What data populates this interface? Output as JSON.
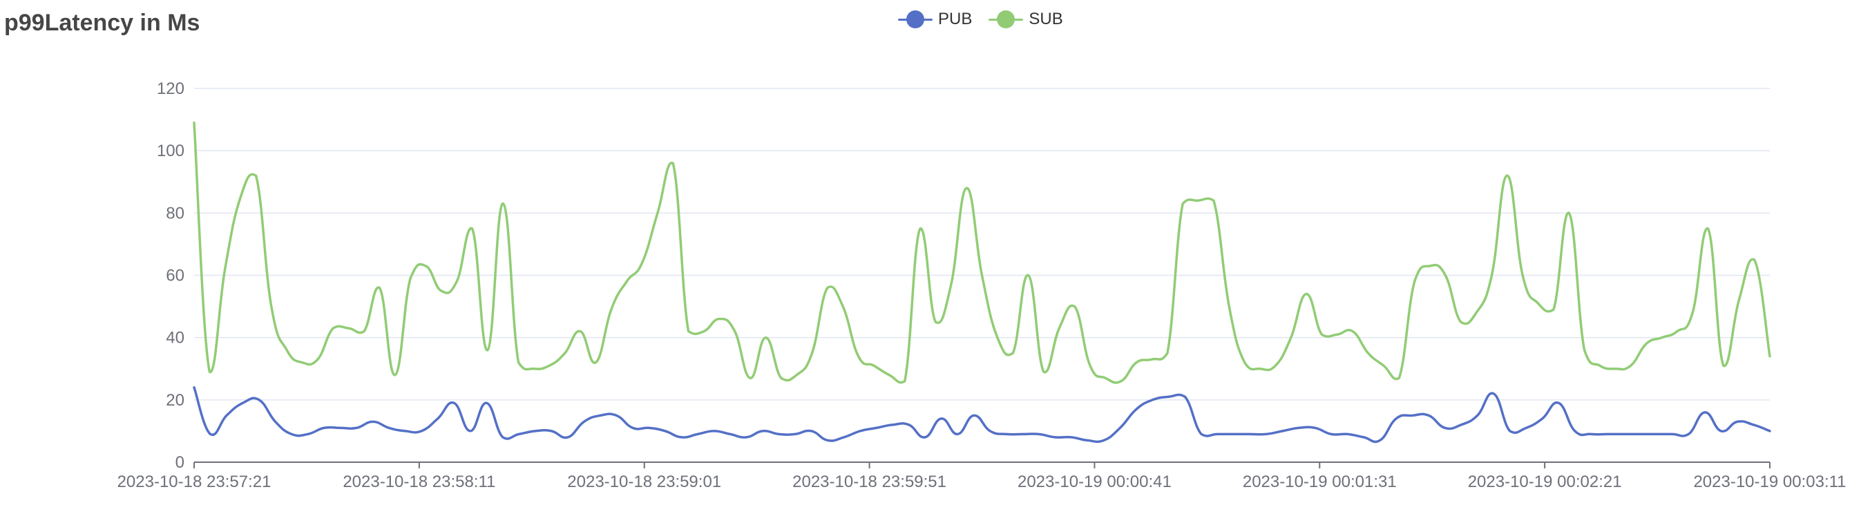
{
  "chart_data": {
    "type": "line",
    "title": "p99Latency in Ms",
    "xlabel": "",
    "ylabel": "",
    "ylim": [
      0,
      120
    ],
    "yticks": [
      0,
      20,
      40,
      60,
      80,
      100,
      120
    ],
    "x_tick_labels": [
      "2023-10-18 23:57:21",
      "2023-10-18 23:58:11",
      "2023-10-18 23:59:01",
      "2023-10-18 23:59:51",
      "2023-10-19 00:00:41",
      "2023-10-19 00:01:31",
      "2023-10-19 00:02:21",
      "2023-10-19 00:03:11"
    ],
    "x_start": "2023-10-18 23:57:21",
    "x_end": "2023-10-19 00:03:11",
    "grid": true,
    "legend_position": "top-center",
    "series": [
      {
        "name": "PUB",
        "color": "#5470c6",
        "values": [
          24,
          9,
          15,
          19,
          20,
          13,
          9,
          9,
          11,
          11,
          11,
          13,
          11,
          10,
          10,
          14,
          19,
          10,
          19,
          8,
          9,
          10,
          10,
          8,
          13,
          15,
          15,
          11,
          11,
          10,
          8,
          9,
          10,
          9,
          8,
          10,
          9,
          9,
          10,
          7,
          8,
          10,
          11,
          12,
          12,
          8,
          14,
          9,
          15,
          10,
          9,
          9,
          9,
          8,
          8,
          7,
          7,
          11,
          17,
          20,
          21,
          21,
          9,
          9,
          9,
          9,
          9,
          10,
          11,
          11,
          9,
          9,
          8,
          7,
          14,
          15,
          15,
          11,
          12,
          15,
          22,
          10,
          11,
          14,
          19,
          10,
          9,
          9,
          9,
          9,
          9,
          9,
          9,
          16,
          10,
          13,
          12,
          10
        ]
      },
      {
        "name": "SUB",
        "color": "#91cc75",
        "values": [
          109,
          29,
          62,
          85,
          92,
          50,
          36,
          32,
          33,
          43,
          43,
          42,
          56,
          28,
          59,
          63,
          55,
          58,
          75,
          36,
          83,
          32,
          30,
          31,
          35,
          42,
          32,
          49,
          58,
          64,
          80,
          96,
          42,
          42,
          46,
          42,
          27,
          40,
          27,
          28,
          35,
          56,
          50,
          34,
          31,
          28,
          26,
          75,
          45,
          57,
          88,
          60,
          40,
          35,
          60,
          29,
          43,
          50,
          31,
          27,
          26,
          32,
          33,
          35,
          83,
          84,
          84,
          50,
          32,
          30,
          31,
          40,
          54,
          41,
          41,
          42,
          35,
          31,
          27,
          58,
          63,
          60,
          45,
          48,
          60,
          92,
          60,
          51,
          49,
          80,
          36,
          31,
          30,
          31,
          38,
          40,
          42,
          48,
          75,
          31,
          52,
          65,
          34
        ]
      }
    ]
  }
}
